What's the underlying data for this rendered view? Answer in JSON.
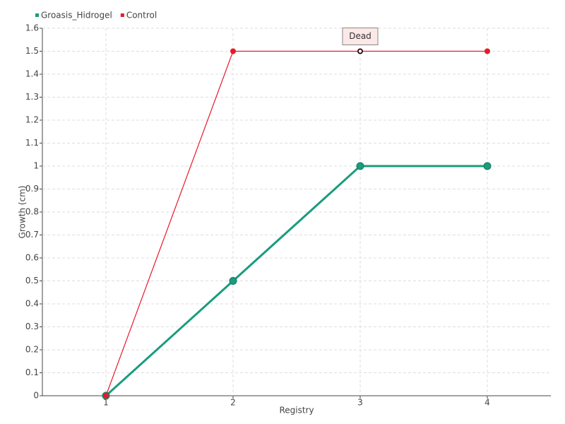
{
  "chart_data": {
    "type": "line",
    "x_label": "Registry",
    "y_label": "Growth (cm)",
    "categories": [
      "1",
      "2",
      "3",
      "4"
    ],
    "series": [
      {
        "name": "Groasis_Hidrogel",
        "color": "#1a9c7d",
        "values": [
          0,
          0.5,
          1,
          1
        ]
      },
      {
        "name": "Control",
        "color": "#e8192c",
        "values": [
          0,
          1.5,
          1.5,
          1.5
        ]
      }
    ],
    "ylim": [
      0,
      1.6
    ],
    "yticks": [
      0,
      0.1,
      0.2,
      0.3,
      0.4,
      0.5,
      0.6,
      0.7,
      0.8,
      0.9,
      1,
      1.1,
      1.2,
      1.3,
      1.4,
      1.5,
      1.6
    ],
    "grid": true,
    "legend": "top-left",
    "annotations": [
      {
        "text": "Dead",
        "x": "3",
        "y": 1.5
      }
    ]
  }
}
